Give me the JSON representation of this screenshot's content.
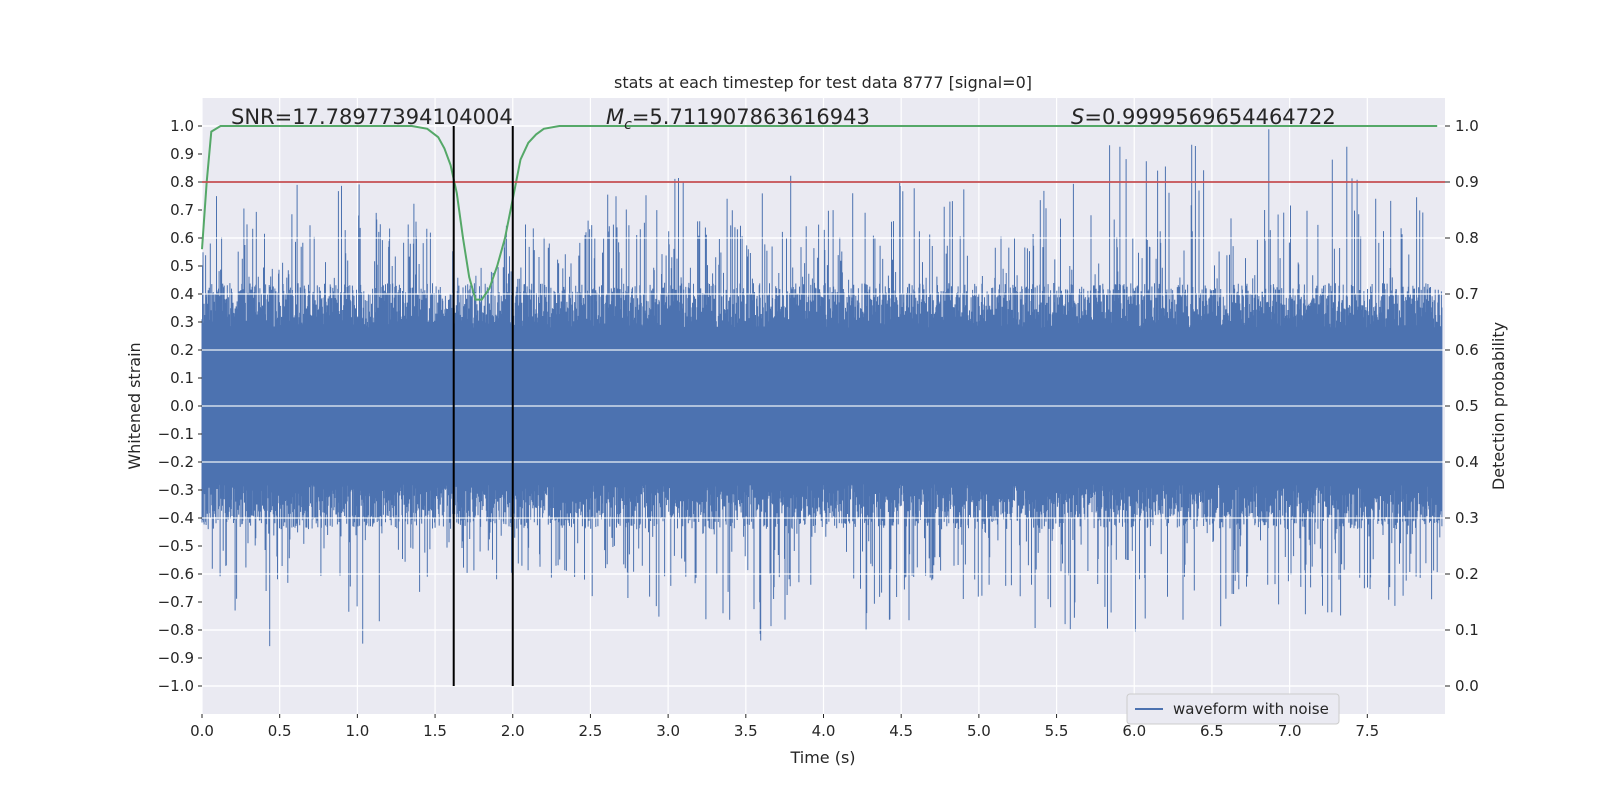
{
  "chart_data": {
    "type": "line",
    "title": "stats at each timestep for test data 8777 [signal=0]",
    "xlabel": "Time (s)",
    "ylabel": "Whitened strain",
    "y2label": "Detection probability",
    "xlim": [
      0.0,
      8.0
    ],
    "ylim": [
      -1.1,
      1.1
    ],
    "y2lim": [
      -0.05,
      1.05
    ],
    "x_ticks": [
      "0.0",
      "0.5",
      "1.0",
      "1.5",
      "2.0",
      "2.5",
      "3.0",
      "3.5",
      "4.0",
      "4.5",
      "5.0",
      "5.5",
      "6.0",
      "6.5",
      "7.0",
      "7.5"
    ],
    "y_ticks": [
      "1.0",
      "0.9",
      "0.8",
      "0.7",
      "0.6",
      "0.5",
      "0.4",
      "0.3",
      "0.2",
      "0.1",
      "0.0",
      "−0.1",
      "−0.2",
      "−0.3",
      "−0.4",
      "−0.5",
      "−0.6",
      "−0.7",
      "−0.8",
      "−0.9",
      "−1.0"
    ],
    "y2_ticks": [
      "1.0",
      "0.9",
      "0.8",
      "0.7",
      "0.6",
      "0.5",
      "0.4",
      "0.3",
      "0.2",
      "0.1",
      "0.0"
    ],
    "grid": true,
    "legend_position": "lower-right",
    "annotations": {
      "snr": "SNR=17.78977394104004",
      "mc": "=5.711907863616943",
      "mc_symbol": "M",
      "mc_sub": "c",
      "s": "=0.9999569654464722",
      "s_symbol": "S"
    },
    "series": [
      {
        "name": "waveform with noise",
        "axis": "left",
        "color": "#4c72b0",
        "style": "dense noise, typical amplitude ±0.4, peaks near 0.8–1.0",
        "envelope_top": [
          [
            0.0,
            0.6
          ],
          [
            0.05,
            0.79
          ],
          [
            0.5,
            0.65
          ],
          [
            0.53,
            0.81
          ],
          [
            0.8,
            0.78
          ],
          [
            1.25,
            0.84
          ],
          [
            1.6,
            0.6
          ],
          [
            1.7,
            0.4
          ],
          [
            2.0,
            0.6
          ],
          [
            2.8,
            0.88
          ],
          [
            3.35,
            0.82
          ],
          [
            5.3,
            0.84
          ],
          [
            6.2,
            1.0
          ],
          [
            7.22,
            1.0
          ],
          [
            7.7,
            0.82
          ],
          [
            8.0,
            0.7
          ]
        ],
        "envelope_bottom": [
          [
            0.0,
            -0.65
          ],
          [
            0.55,
            -0.98
          ],
          [
            0.92,
            -0.91
          ],
          [
            0.96,
            -0.9
          ],
          [
            1.6,
            -0.6
          ],
          [
            1.99,
            -0.61
          ],
          [
            3.52,
            -0.85
          ],
          [
            4.6,
            -0.8
          ],
          [
            5.1,
            -0.8
          ],
          [
            6.2,
            -0.82
          ],
          [
            8.0,
            -0.72
          ]
        ]
      },
      {
        "name": "",
        "axis": "right",
        "color": "#55a868",
        "x": [
          0.0,
          0.03,
          0.06,
          0.12,
          0.2,
          0.5,
          1.0,
          1.35,
          1.45,
          1.52,
          1.56,
          1.6,
          1.64,
          1.68,
          1.72,
          1.76,
          1.8,
          1.85,
          1.9,
          1.95,
          2.0,
          2.05,
          2.1,
          2.15,
          2.2,
          2.3,
          2.5,
          3.0,
          5.0,
          7.95
        ],
        "y": [
          0.78,
          0.9,
          0.99,
          1.0,
          1.0,
          1.0,
          1.0,
          1.0,
          0.995,
          0.98,
          0.96,
          0.93,
          0.88,
          0.8,
          0.73,
          0.69,
          0.69,
          0.71,
          0.75,
          0.8,
          0.87,
          0.94,
          0.97,
          0.985,
          0.995,
          1.0,
          1.0,
          1.0,
          1.0,
          1.0
        ]
      },
      {
        "name": "",
        "axis": "right",
        "type": "hline",
        "color": "#c44e52",
        "value": 0.9
      },
      {
        "name": "",
        "type": "vlines",
        "color": "#000000",
        "x": [
          1.62,
          2.0
        ],
        "y2_range": [
          0.0,
          1.0
        ]
      }
    ]
  }
}
